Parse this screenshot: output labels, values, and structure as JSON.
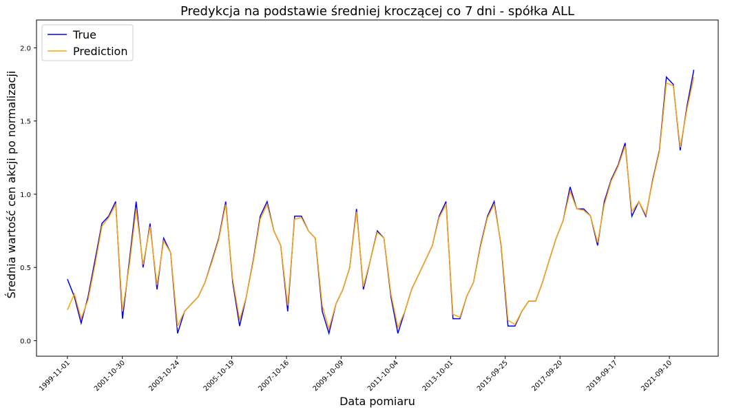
{
  "chart_data": {
    "type": "line",
    "title": "Predykcja na podstawie średniej kroczącej co 7 dni - spółka ALL",
    "x_label": "Data pomiaru",
    "y_label": "Średnia wartość cen akcji po normalizacji",
    "x": [
      "1999-11-01",
      "2000-02-01",
      "2000-05-01",
      "2000-08-01",
      "2000-11-01",
      "2001-02-01",
      "2001-05-01",
      "2001-08-01",
      "2001-11-01",
      "2002-02-01",
      "2002-05-01",
      "2002-08-01",
      "2002-11-01",
      "2003-02-01",
      "2003-05-01",
      "2003-08-01",
      "2003-11-01",
      "2004-02-01",
      "2004-05-01",
      "2004-08-01",
      "2004-11-01",
      "2005-02-01",
      "2005-05-01",
      "2005-08-01",
      "2005-11-01",
      "2006-02-01",
      "2006-05-01",
      "2006-08-01",
      "2006-11-01",
      "2007-02-01",
      "2007-05-01",
      "2007-08-01",
      "2007-11-01",
      "2008-02-01",
      "2008-05-01",
      "2008-08-01",
      "2008-11-01",
      "2009-02-01",
      "2009-05-01",
      "2009-08-01",
      "2009-11-01",
      "2010-02-01",
      "2010-05-01",
      "2010-08-01",
      "2010-11-01",
      "2011-02-01",
      "2011-05-01",
      "2011-08-01",
      "2011-11-01",
      "2012-02-01",
      "2012-05-01",
      "2012-08-01",
      "2012-11-01",
      "2013-02-01",
      "2013-05-01",
      "2013-08-01",
      "2013-11-01",
      "2014-02-01",
      "2014-05-01",
      "2014-08-01",
      "2014-11-01",
      "2015-02-01",
      "2015-05-01",
      "2015-08-01",
      "2015-11-01",
      "2016-02-01",
      "2016-05-01",
      "2016-08-01",
      "2016-11-01",
      "2017-02-01",
      "2017-05-01",
      "2017-08-01",
      "2017-11-01",
      "2018-02-01",
      "2018-05-01",
      "2018-08-01",
      "2018-11-01",
      "2019-02-01",
      "2019-05-01",
      "2019-08-01",
      "2019-11-01",
      "2020-02-01",
      "2020-05-01",
      "2020-08-01",
      "2020-11-01",
      "2021-02-01",
      "2021-05-01",
      "2021-08-01",
      "2021-11-01",
      "2022-02-01",
      "2022-05-01",
      "2022-08-01"
    ],
    "series": [
      {
        "name": "True",
        "color": "#0000ff",
        "values": [
          0.42,
          0.3,
          0.12,
          0.3,
          0.55,
          0.8,
          0.85,
          0.95,
          0.15,
          0.55,
          0.95,
          0.5,
          0.8,
          0.35,
          0.7,
          0.6,
          0.05,
          0.2,
          0.25,
          0.3,
          0.4,
          0.55,
          0.7,
          0.95,
          0.4,
          0.1,
          0.3,
          0.55,
          0.85,
          0.95,
          0.75,
          0.65,
          0.2,
          0.85,
          0.85,
          0.75,
          0.7,
          0.2,
          0.05,
          0.25,
          0.35,
          0.5,
          0.9,
          0.35,
          0.55,
          0.75,
          0.7,
          0.3,
          0.05,
          0.2,
          0.35,
          0.45,
          0.55,
          0.65,
          0.85,
          0.95,
          0.15,
          0.15,
          0.3,
          0.4,
          0.65,
          0.85,
          0.95,
          0.65,
          0.1,
          0.1,
          0.2,
          0.27,
          0.27,
          0.4,
          0.55,
          0.7,
          0.82,
          1.05,
          0.9,
          0.9,
          0.85,
          0.65,
          0.95,
          1.1,
          1.2,
          1.35,
          0.85,
          0.95,
          0.85,
          1.1,
          1.3,
          1.8,
          1.75,
          1.3,
          1.6,
          1.85
        ]
      },
      {
        "name": "Prediction",
        "color": "#ffa500",
        "values": [
          0.21,
          0.32,
          0.15,
          0.28,
          0.52,
          0.78,
          0.84,
          0.93,
          0.2,
          0.52,
          0.9,
          0.52,
          0.78,
          0.38,
          0.68,
          0.6,
          0.1,
          0.2,
          0.25,
          0.3,
          0.4,
          0.54,
          0.69,
          0.93,
          0.42,
          0.14,
          0.3,
          0.54,
          0.83,
          0.93,
          0.75,
          0.65,
          0.24,
          0.83,
          0.84,
          0.75,
          0.7,
          0.24,
          0.08,
          0.25,
          0.35,
          0.5,
          0.88,
          0.37,
          0.55,
          0.74,
          0.7,
          0.32,
          0.09,
          0.2,
          0.35,
          0.45,
          0.55,
          0.65,
          0.84,
          0.93,
          0.18,
          0.16,
          0.3,
          0.4,
          0.64,
          0.84,
          0.93,
          0.66,
          0.14,
          0.11,
          0.2,
          0.27,
          0.27,
          0.4,
          0.55,
          0.7,
          0.82,
          1.02,
          0.9,
          0.89,
          0.85,
          0.67,
          0.93,
          1.09,
          1.19,
          1.33,
          0.88,
          0.95,
          0.86,
          1.09,
          1.29,
          1.76,
          1.74,
          1.32,
          1.58,
          1.8
        ]
      }
    ],
    "xlim": [
      "1998-09-17",
      "2023-06-20"
    ],
    "xticks": [
      "1999-11-01",
      "2001-10-30",
      "2003-10-24",
      "2005-10-19",
      "2007-10-16",
      "2009-10-09",
      "2011-10-04",
      "2013-10-01",
      "2015-09-25",
      "2017-09-20",
      "2019-09-17",
      "2021-09-10"
    ],
    "ylim": [
      -0.106,
      2.19
    ],
    "yticks": [
      {
        "value": 0,
        "label": "0.0"
      },
      {
        "value": 0.5,
        "label": "0.5"
      },
      {
        "value": 1,
        "label": "1.0"
      },
      {
        "value": 1.5,
        "label": "1.5"
      },
      {
        "value": 2,
        "label": "2.0"
      }
    ],
    "legend": "upper left"
  }
}
